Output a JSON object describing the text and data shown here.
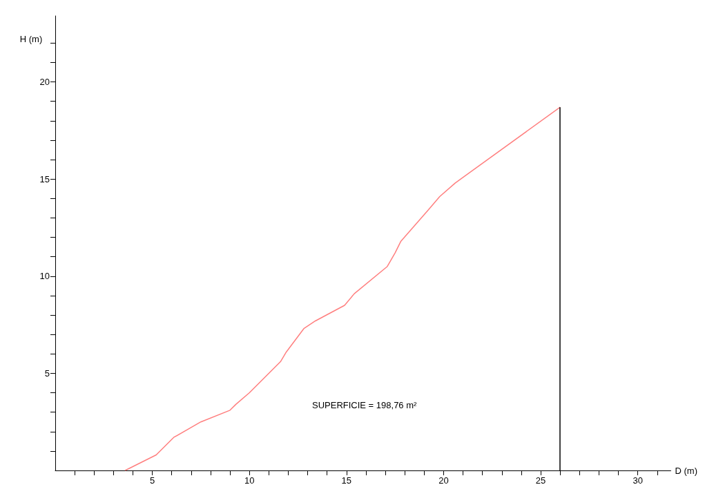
{
  "chart_data": {
    "type": "line",
    "xlabel": "D (m)",
    "ylabel": "H (m)",
    "x": [
      3.6,
      5.2,
      6.1,
      7.5,
      9.0,
      9.3,
      10.0,
      11.6,
      11.9,
      12.8,
      13.4,
      14.9,
      15.4,
      17.1,
      17.5,
      17.8,
      19.2,
      19.8,
      20.6,
      26.0
    ],
    "series": [
      {
        "color": "#ff7f7f",
        "values": [
          0,
          0.8,
          1.7,
          2.5,
          3.1,
          3.4,
          4.0,
          5.6,
          6.1,
          7.3,
          7.7,
          8.5,
          9.1,
          10.5,
          11.2,
          11.8,
          13.4,
          14.1,
          14.8,
          18.7
        ]
      }
    ],
    "xlim": [
      0,
      31.7
    ],
    "xticks": [
      {
        "value": 1,
        "label": null
      },
      {
        "value": 2,
        "label": null
      },
      {
        "value": 3,
        "label": null
      },
      {
        "value": 4,
        "label": null
      },
      5,
      {
        "value": 6,
        "label": null
      },
      {
        "value": 7,
        "label": null
      },
      {
        "value": 8,
        "label": null
      },
      {
        "value": 9,
        "label": null
      },
      10,
      {
        "value": 11,
        "label": null
      },
      {
        "value": 12,
        "label": null
      },
      {
        "value": 13,
        "label": null
      },
      {
        "value": 14,
        "label": null
      },
      15,
      {
        "value": 16,
        "label": null
      },
      {
        "value": 17,
        "label": null
      },
      {
        "value": 18,
        "label": null
      },
      {
        "value": 19,
        "label": null
      },
      20,
      {
        "value": 21,
        "label": null
      },
      {
        "value": 22,
        "label": null
      },
      {
        "value": 23,
        "label": null
      },
      {
        "value": 24,
        "label": null
      },
      25,
      {
        "value": 26,
        "label": null
      },
      {
        "value": 27,
        "label": null
      },
      {
        "value": 28,
        "label": null
      },
      {
        "value": 29,
        "label": null
      },
      30,
      {
        "value": 31,
        "label": null
      }
    ],
    "ylim": [
      0,
      23.4
    ],
    "yticks": [
      {
        "value": 1,
        "label": null
      },
      {
        "value": 2,
        "label": null
      },
      {
        "value": 3,
        "label": null
      },
      {
        "value": 4,
        "label": null
      },
      5,
      {
        "value": 6,
        "label": null
      },
      {
        "value": 7,
        "label": null
      },
      {
        "value": 8,
        "label": null
      },
      {
        "value": 9,
        "label": null
      },
      10,
      {
        "value": 11,
        "label": null
      },
      {
        "value": 12,
        "label": null
      },
      {
        "value": 13,
        "label": null
      },
      {
        "value": 14,
        "label": null
      },
      15,
      {
        "value": 16,
        "label": null
      },
      {
        "value": 17,
        "label": null
      },
      {
        "value": 18,
        "label": null
      },
      {
        "value": 19,
        "label": null
      },
      20,
      {
        "value": 21,
        "label": null
      },
      {
        "value": 22,
        "label": null
      }
    ],
    "ref_lines": [
      {
        "axis": "x",
        "value": 26,
        "color": "#000000"
      }
    ],
    "annotations": [
      "SUPERFICIE = 198,76 m²"
    ],
    "grid": false,
    "marker": "none",
    "line_style": "solid"
  }
}
